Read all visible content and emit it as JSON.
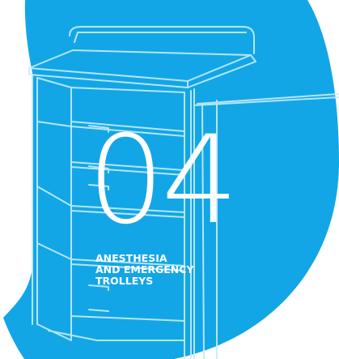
{
  "section": {
    "number": "04",
    "title_lines": [
      "ANESTHESIA",
      "AND EMERGENCY",
      "TROLLEYS"
    ]
  },
  "colors": {
    "background": "#ffffff",
    "brand_blue": "#12a6e6",
    "line_art": "#c8ecfb",
    "text": "#ffffff"
  },
  "illustration": {
    "icon": "medical-trolley-icon"
  }
}
